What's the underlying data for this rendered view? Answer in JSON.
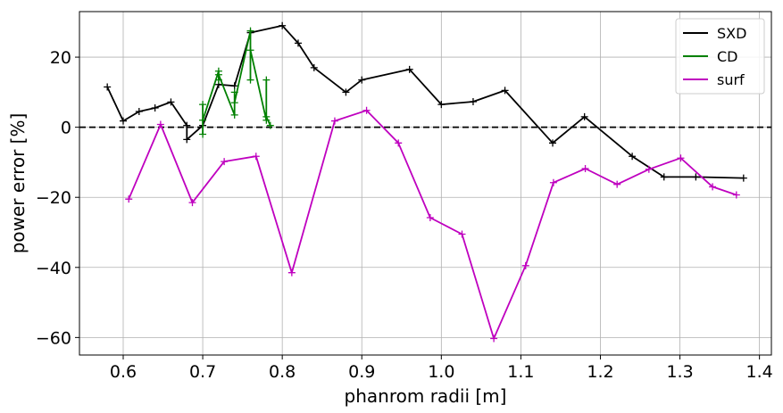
{
  "chart_data": {
    "type": "line",
    "title": "",
    "xlabel": "phanrom radii [m]",
    "ylabel": "power error [%]",
    "xlim": [
      0.545,
      1.415
    ],
    "ylim": [
      -65,
      33
    ],
    "xticks": [
      0.6,
      0.7,
      0.8,
      0.9,
      1.0,
      1.1,
      1.2,
      1.3,
      1.4
    ],
    "xtick_labels": [
      "0.6",
      "0.7",
      "0.8",
      "0.9",
      "1.0",
      "1.1",
      "1.2",
      "1.3",
      "1.4"
    ],
    "yticks": [
      20,
      0,
      -20,
      -40,
      -60
    ],
    "ytick_labels": [
      "20",
      "0",
      "−20",
      "−40",
      "−60"
    ],
    "grid": true,
    "legend_position": "top-right",
    "reference_line": {
      "y": 0,
      "style": "dashed",
      "color": "#000000"
    },
    "series": [
      {
        "name": "SXD",
        "color": "#000000",
        "x": [
          0.58,
          0.6,
          0.62,
          0.64,
          0.66,
          0.68,
          0.68,
          0.7,
          0.72,
          0.74,
          0.76,
          0.8,
          0.82,
          0.84,
          0.88,
          0.9,
          0.96,
          1.0,
          1.04,
          1.08,
          1.14,
          1.18,
          1.24,
          1.28,
          1.32,
          1.38
        ],
        "y": [
          11.5,
          1.8,
          4.5,
          5.5,
          7.2,
          0.5,
          -3.5,
          0.5,
          12.2,
          11.8,
          27.0,
          29.0,
          24.0,
          17.0,
          10.0,
          13.5,
          16.5,
          6.5,
          7.3,
          10.5,
          -4.5,
          3.0,
          -8.3,
          -14.2,
          -14.2,
          -14.5
        ]
      },
      {
        "name": "CD",
        "color": "#008000",
        "x": [
          0.7,
          0.7,
          0.7,
          0.72,
          0.72,
          0.72,
          0.74,
          0.74,
          0.74,
          0.76,
          0.76,
          0.76,
          0.78,
          0.78,
          0.78,
          0.785
        ],
        "y": [
          -2.0,
          6.5,
          2.0,
          16.0,
          13.5,
          15.0,
          3.5,
          10.0,
          7.0,
          27.5,
          13.5,
          22.0,
          2.0,
          13.5,
          3.0,
          0.5
        ]
      },
      {
        "name": "surf",
        "color": "#bf00bf",
        "x": [
          0.607,
          0.647,
          0.687,
          0.727,
          0.767,
          0.812,
          0.866,
          0.906,
          0.946,
          0.986,
          1.026,
          1.066,
          1.106,
          1.141,
          1.181,
          1.221,
          1.261,
          1.301,
          1.341,
          1.371
        ],
        "y": [
          -20.5,
          0.8,
          -21.5,
          -9.8,
          -8.3,
          -41.5,
          1.8,
          4.8,
          -4.5,
          -25.8,
          -30.5,
          -60.3,
          -39.5,
          -15.8,
          -11.8,
          -16.3,
          -12.0,
          -8.8,
          -17.0,
          -19.3
        ]
      }
    ]
  }
}
